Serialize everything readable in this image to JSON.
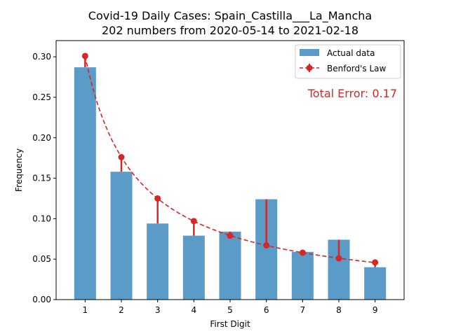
{
  "chart_data": {
    "type": "bar",
    "title": "Covid-19 Daily Cases: Spain_Castilla___La_Mancha",
    "subtitle": "202 numbers from 2020-05-14 to 2021-02-18",
    "xlabel": "First Digit",
    "ylabel": "Frequency",
    "categories": [
      "1",
      "2",
      "3",
      "4",
      "5",
      "6",
      "7",
      "8",
      "9"
    ],
    "x": [
      1,
      2,
      3,
      4,
      5,
      6,
      7,
      8,
      9
    ],
    "ylim": [
      0,
      0.32
    ],
    "yticks": [
      0.0,
      0.05,
      0.1,
      0.15,
      0.2,
      0.25,
      0.3
    ],
    "ytick_labels": [
      "0.00",
      "0.05",
      "0.10",
      "0.15",
      "0.20",
      "0.25",
      "0.30"
    ],
    "series": [
      {
        "name": "Actual data",
        "kind": "bar",
        "color": "#5b9bc8",
        "values": [
          0.287,
          0.158,
          0.094,
          0.079,
          0.084,
          0.124,
          0.059,
          0.074,
          0.04
        ]
      },
      {
        "name": "Benford's Law",
        "kind": "line-dashed-markers",
        "color": "#d62728",
        "values": [
          0.301,
          0.176,
          0.125,
          0.097,
          0.079,
          0.067,
          0.058,
          0.051,
          0.046
        ]
      }
    ],
    "annotation": "Total Error: 0.17",
    "annotation_color": "#d62728",
    "legend_position": "top-right",
    "grid": false
  }
}
